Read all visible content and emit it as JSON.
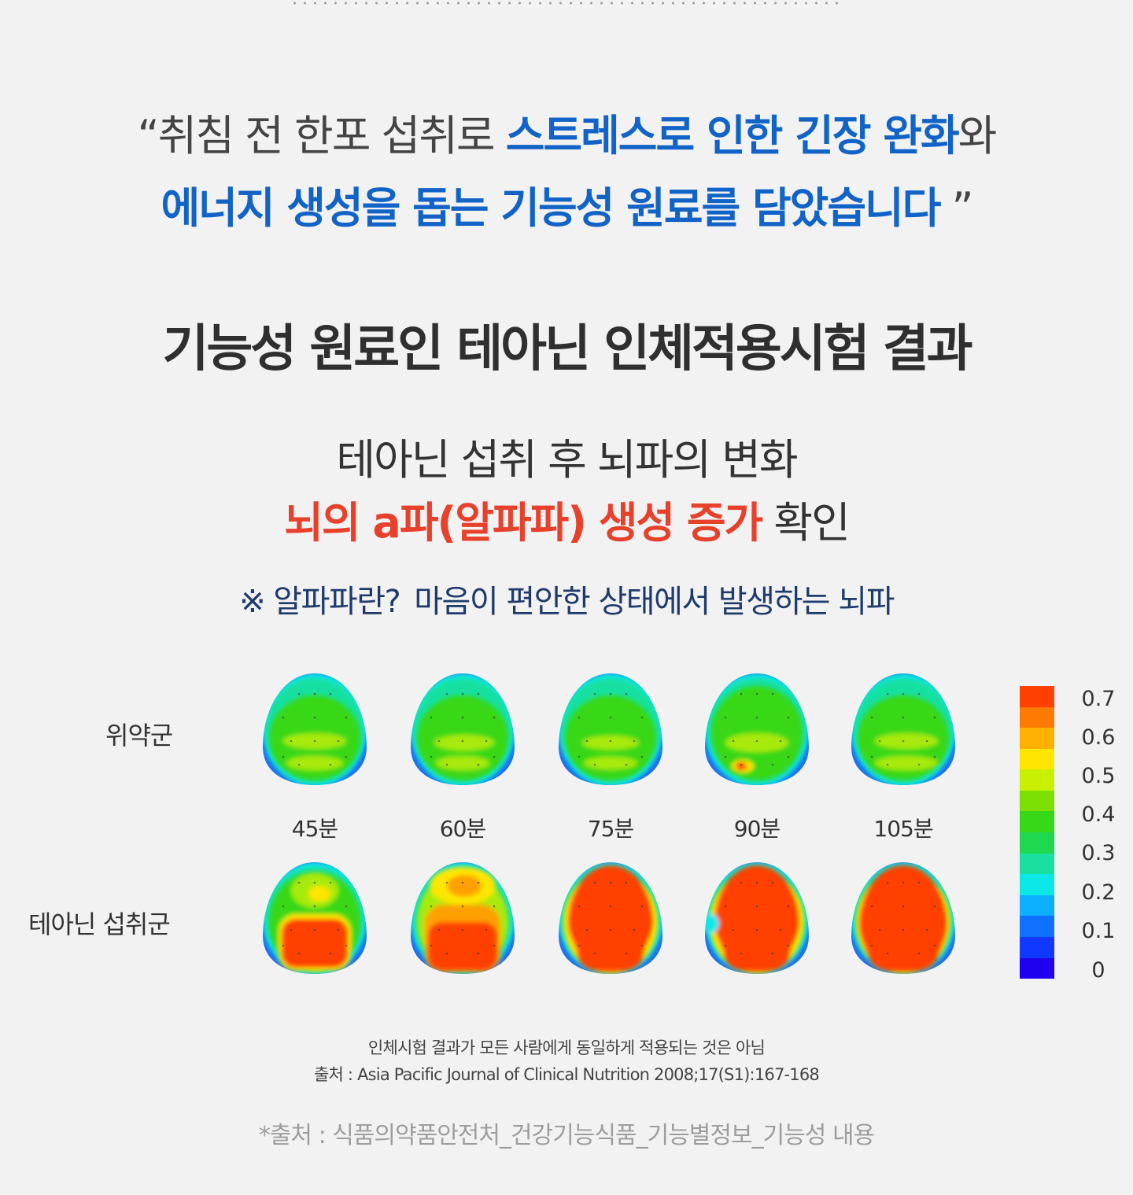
{
  "quote": {
    "line1_open": "“취침 전 한포 섭취로 ",
    "line1_highlight": "스트레스로 인한 긴장 완화",
    "line1_close": "와",
    "line2_highlight": "에너지 생성을 돕는 기능성 원료를 담았습니다",
    "line2_close": " ”"
  },
  "title": "기능성 원료인 테아닌 인체적용시험 결과",
  "subtitle": {
    "line1": "테아닌 섭취 후 뇌파의 변화",
    "line2_highlight": "뇌의 a파(알파파) 생성 증가",
    "line2_rest": " 확인"
  },
  "note": {
    "question": "※ 알파파란?",
    "answer": "마음이 편안한 상태에서 발생하는 뇌파"
  },
  "chart_data": {
    "type": "heatmap",
    "rows": [
      "위약군",
      "테아닌 섭취군"
    ],
    "columns": [
      "45분",
      "60분",
      "75분",
      "90분",
      "105분"
    ],
    "scale_labels": [
      "0.7",
      "0.6",
      "0.5",
      "0.4",
      "0.3",
      "0.2",
      "0.1",
      "0"
    ],
    "scale_range": [
      0,
      0.7
    ],
    "scale_colors": [
      "#ff4000",
      "#ff7a00",
      "#ffb000",
      "#ffe600",
      "#c8f000",
      "#7ee000",
      "#37d818",
      "#1ed850",
      "#18e0a0",
      "#0ce8e8",
      "#0cb0ff",
      "#1070ff",
      "#1038ff",
      "#2000f0"
    ],
    "brain_colors": {
      "low": "#1e6eea",
      "cyan": "#0ce8e8",
      "mint": "#18e0a0",
      "green": "#37d818",
      "lime": "#a8ea10",
      "yellow": "#ffe600",
      "orange": "#ffa000",
      "red": "#ff4000"
    }
  },
  "footnote": {
    "line1": "인체시험 결과가 모든 사람에게 동일하게 적용되는 것은 아님",
    "line2": "출처 : Asia Pacific Journal of Clinical Nutrition 2008;17(S1):167-168"
  },
  "source": "*출처 : 식품의약품안전처_건강기능식품_기능별정보_기능성 내용"
}
